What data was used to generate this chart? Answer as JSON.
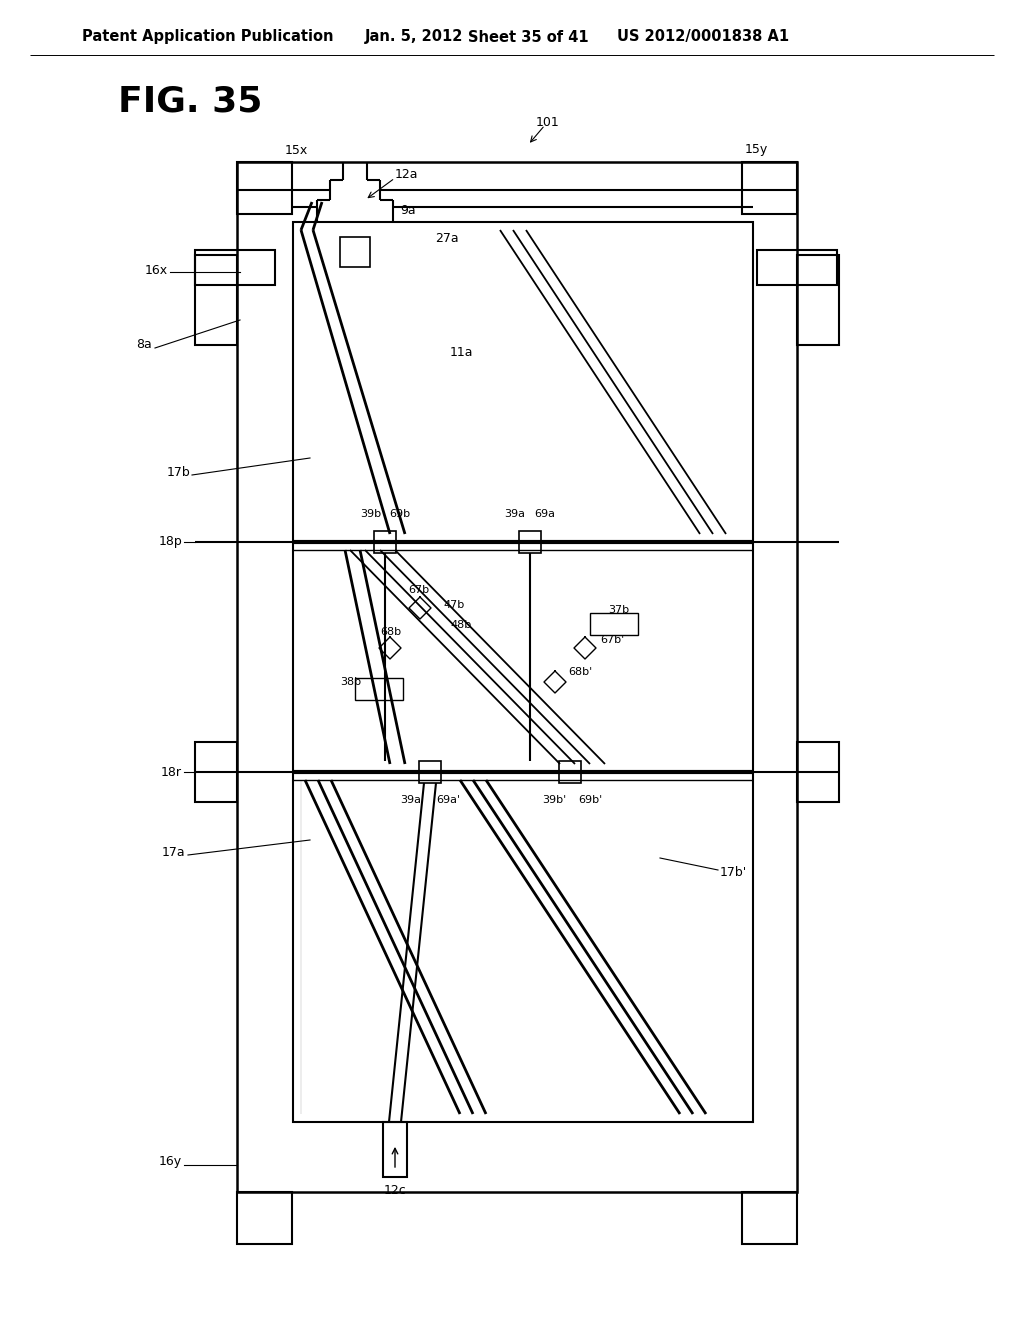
{
  "bg_color": "#ffffff",
  "line_color": "#000000",
  "header_text": "Patent Application Publication",
  "header_date": "Jan. 5, 2012",
  "header_sheet": "Sheet 35 of 41",
  "header_patent": "US 2012/0001838 A1",
  "fig_label": "FIG. 35",
  "header_font_size": 10.5,
  "fig_font_size": 26,
  "label_font_size": 9,
  "small_font_size": 8
}
